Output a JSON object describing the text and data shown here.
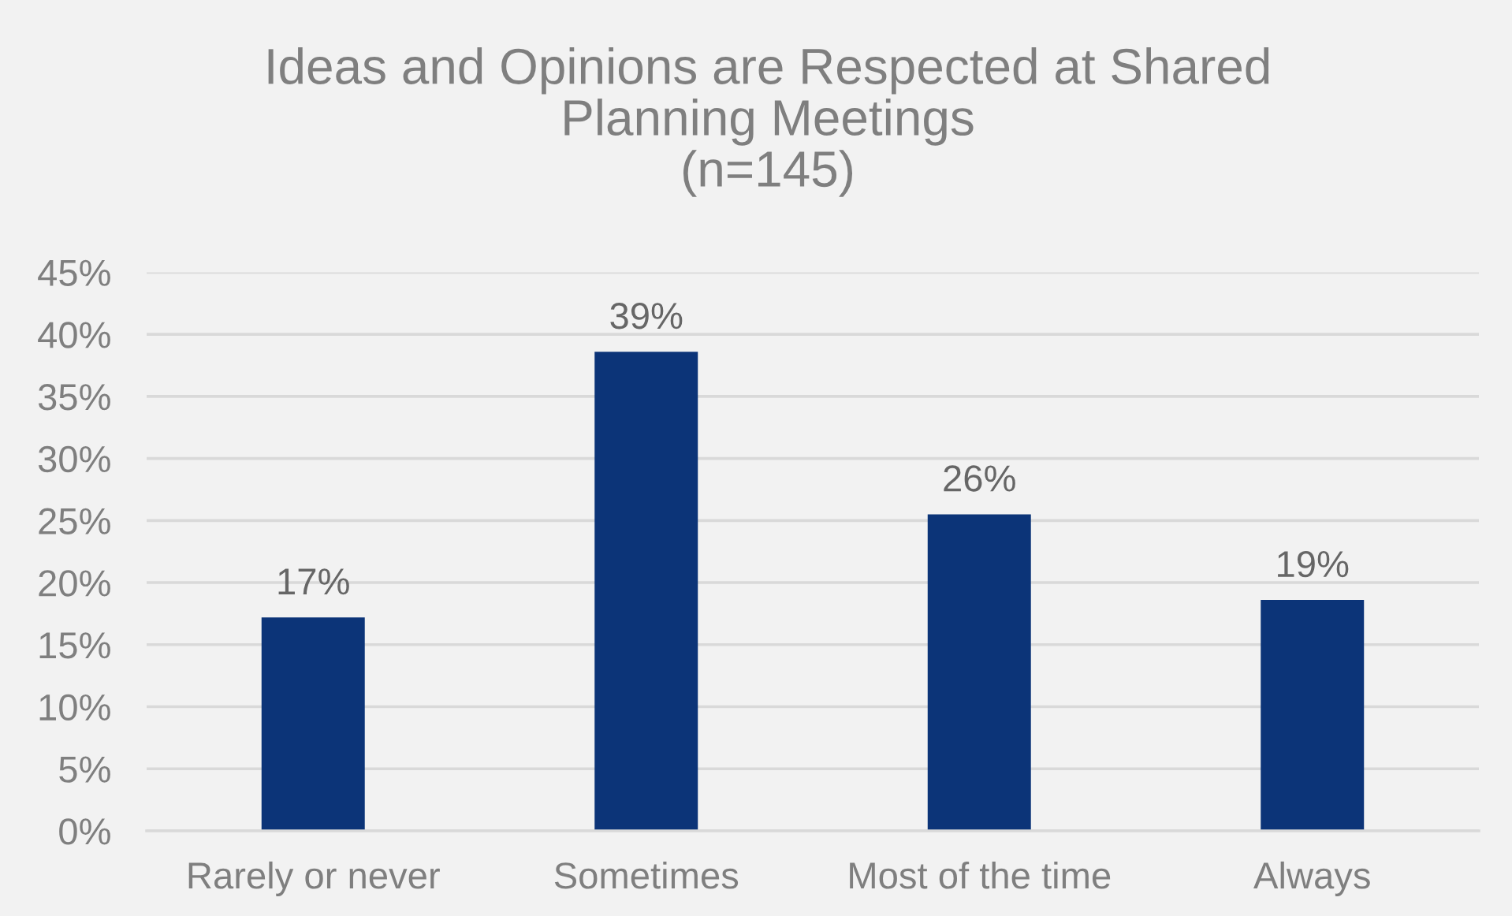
{
  "chart_data": {
    "type": "bar",
    "title": "Ideas and Opinions are Respected at Shared\nPlanning Meetings\n(n=145)",
    "categories": [
      "Rarely or never",
      "Sometimes",
      "Most of the time",
      "Always"
    ],
    "values": [
      17.2,
      38.6,
      25.5,
      18.6
    ],
    "value_labels": [
      "17%",
      "39%",
      "26%",
      "19%"
    ],
    "color": "#0c3478",
    "ylim": [
      0,
      45
    ],
    "yticks": [
      {
        "value": 0,
        "label": "0%"
      },
      {
        "value": 5,
        "label": "5%"
      },
      {
        "value": 10,
        "label": "10%"
      },
      {
        "value": 15,
        "label": "15%"
      },
      {
        "value": 20,
        "label": "20%"
      },
      {
        "value": 25,
        "label": "25%"
      },
      {
        "value": 30,
        "label": "30%"
      },
      {
        "value": 35,
        "label": "35%"
      },
      {
        "value": 40,
        "label": "40%"
      },
      {
        "value": 45,
        "label": "45%"
      }
    ],
    "grid": "y",
    "legend": false
  }
}
